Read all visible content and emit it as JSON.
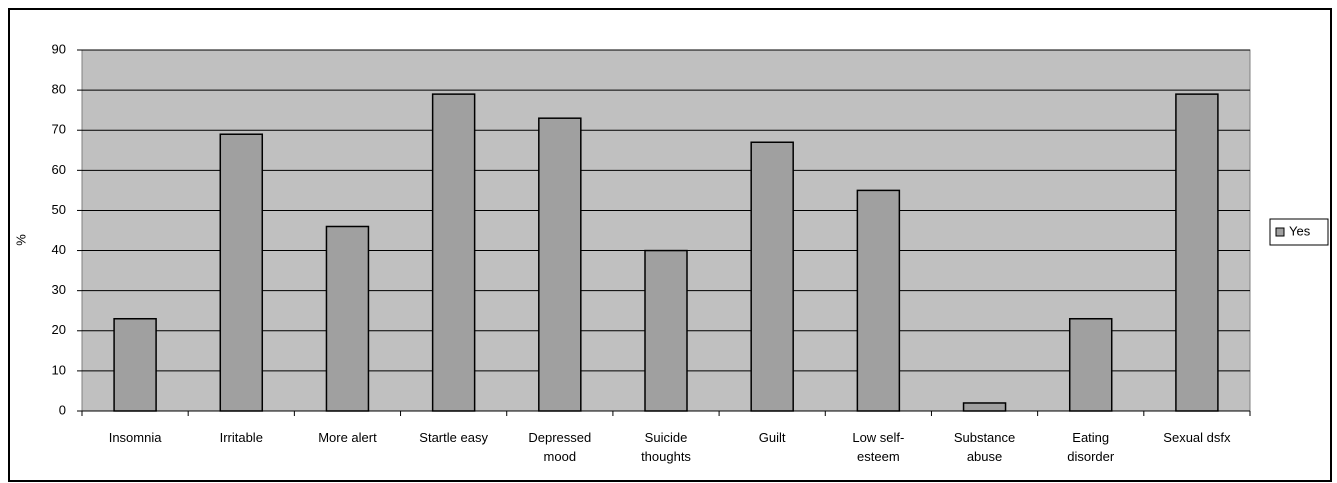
{
  "chart_data": {
    "type": "bar",
    "categories": [
      "Insomnia",
      "Irritable",
      "More alert",
      "Startle easy",
      "Depressed mood",
      "Suicide thoughts",
      "Guilt",
      "Low self-esteem",
      "Substance abuse",
      "Eating disorder",
      "Sexual dsfx"
    ],
    "series": [
      {
        "name": "Yes",
        "color": "#a0a0a0",
        "values": [
          23,
          69,
          46,
          79,
          73,
          40,
          67,
          55,
          2,
          23,
          79
        ]
      }
    ],
    "y_label": "%",
    "ylim": [
      0,
      90
    ],
    "yticks": [
      0,
      10,
      20,
      30,
      40,
      50,
      60,
      70,
      80,
      90
    ],
    "grid": true,
    "legend": "right"
  }
}
